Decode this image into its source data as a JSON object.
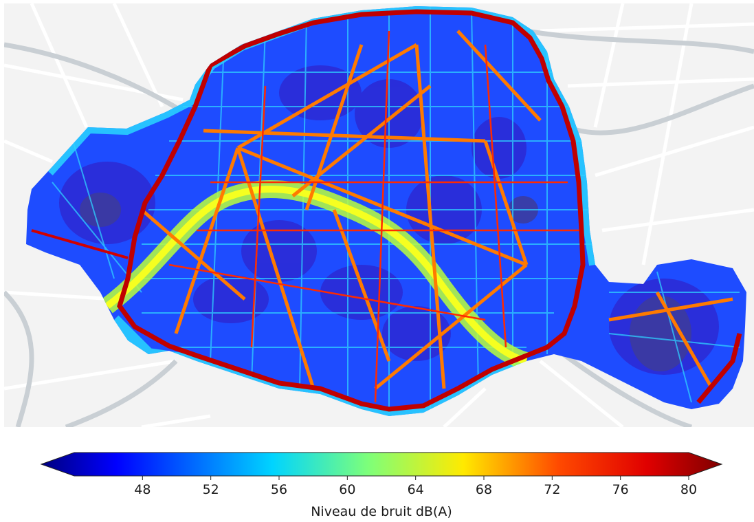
{
  "map": {
    "basemap": "grey street basemap",
    "coverage": "Paris noise level raster",
    "palette": "jet"
  },
  "colorbar": {
    "label": "Niveau de bruit dB(A)",
    "min": 44,
    "max": 80,
    "extend": "both",
    "ticks": [
      "48",
      "52",
      "56",
      "60",
      "64",
      "68",
      "72",
      "76",
      "80"
    ],
    "tick_values": [
      48,
      52,
      56,
      60,
      64,
      68,
      72,
      76,
      80
    ],
    "colors": [
      "#00007f",
      "#0000ff",
      "#007fff",
      "#00e5ff",
      "#7fff7f",
      "#ffff00",
      "#ff7f00",
      "#ff0000",
      "#7f0000"
    ]
  }
}
